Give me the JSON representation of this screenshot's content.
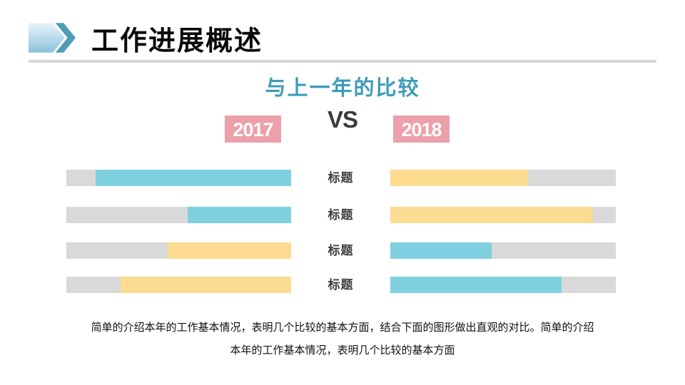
{
  "header": {
    "title": "工作进展概述"
  },
  "subtitle": "与上一年的比较",
  "comparison": {
    "left_year": "2017",
    "vs_label": "VS",
    "right_year": "2018"
  },
  "colors": {
    "subtitle_teal": "#3e9cb8",
    "year_box_pink": "#eca0aa",
    "bar_blue": "#7ed0e0",
    "bar_yellow": "#fbdc90",
    "track_gray": "#d9d9d9",
    "vs_dark": "#3b3b3d",
    "divider_gray": "#d6d6d6",
    "icon_light_blue_top": "#e9f4fa",
    "icon_light_blue_bottom": "#8cc2db",
    "icon_chevron_teal": "#4e9db6"
  },
  "chart_data": {
    "type": "bar",
    "title": "与上一年的比较",
    "groups": [
      "2017",
      "2018"
    ],
    "left_group_alignment": "right",
    "right_group_alignment": "left",
    "value_range_pct": [
      0,
      100
    ],
    "rows": [
      {
        "label": "标题",
        "left_pct": 87,
        "left_color": "#7ed0e0",
        "right_pct": 61,
        "right_color": "#fbdc90"
      },
      {
        "label": "标题",
        "left_pct": 46,
        "left_color": "#7ed0e0",
        "right_pct": 90,
        "right_color": "#fbdc90"
      },
      {
        "label": "标题",
        "left_pct": 55,
        "left_color": "#fbdc90",
        "right_pct": 45,
        "right_color": "#7ed0e0"
      },
      {
        "label": "标题",
        "left_pct": 76,
        "left_color": "#fbdc90",
        "right_pct": 76,
        "right_color": "#7ed0e0"
      }
    ]
  },
  "description": {
    "line1": "简单的介绍本年的工作基本情况，表明几个比较的基本方面，结合下面的图形做出直观的对比。简单的介绍",
    "line2": "本年的工作基本情况，表明几个比较的基本方面"
  }
}
